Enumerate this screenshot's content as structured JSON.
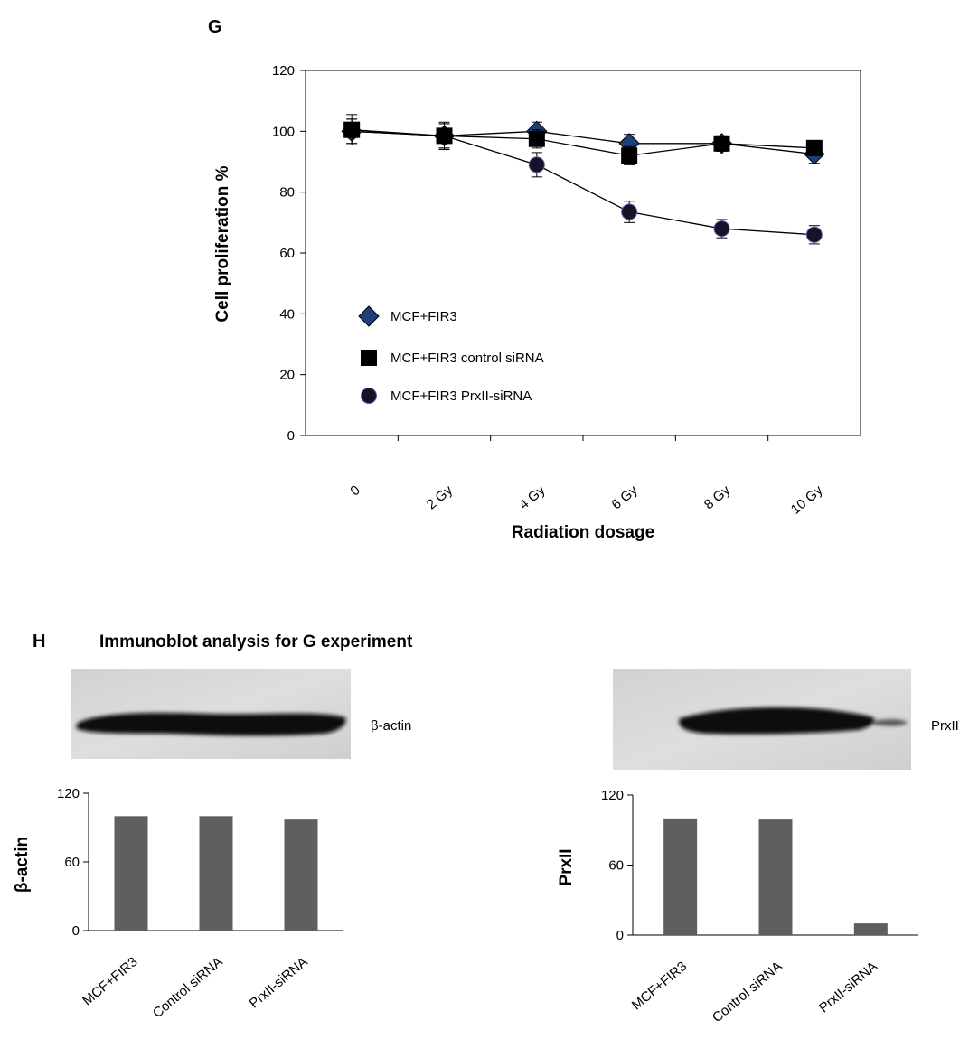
{
  "panel_g": {
    "letter": "G"
  },
  "panel_h": {
    "letter": "H",
    "subtitle": "Immunoblot analysis for G experiment",
    "blot_left_label": "β-actin",
    "blot_right_label": "PrxII"
  },
  "colors": {
    "bar_fill": "#5f5f5f",
    "line": "#000000",
    "diamond_fill": "#1f3f78",
    "circle_fill": "#15122a",
    "square_fill": "#000000"
  },
  "chart_data": [
    {
      "type": "line",
      "title": "",
      "xlabel": "Radiation dosage",
      "ylabel": "Cell proliferation %",
      "categories": [
        "0",
        "2 Gy",
        "4 Gy",
        "6 Gy",
        "8 Gy",
        "10 Gy"
      ],
      "ylim": [
        0,
        120
      ],
      "yticks": [
        0,
        20,
        40,
        60,
        80,
        100,
        120
      ],
      "legend_position": "lower-left",
      "series": [
        {
          "name": "MCF+FIR3",
          "marker": "diamond",
          "values": [
            100,
            98.5,
            100,
            96,
            96,
            92.5
          ],
          "errors": [
            4,
            4,
            3,
            3,
            2.5,
            3
          ]
        },
        {
          "name": "MCF+FIR3 control siRNA",
          "marker": "square",
          "values": [
            100.5,
            98.5,
            97.5,
            92,
            96,
            94.5
          ],
          "errors": [
            5,
            4.5,
            3,
            3,
            2.5,
            2.5
          ]
        },
        {
          "name": "MCF+FIR3 PrxII-siRNA",
          "marker": "circle",
          "values": [
            100,
            98.5,
            89,
            73.5,
            68,
            66
          ],
          "errors": [
            4,
            4,
            4,
            3.5,
            3,
            3
          ]
        }
      ]
    },
    {
      "type": "bar",
      "title": "",
      "xlabel": "",
      "ylabel": "β-actin",
      "categories": [
        "MCF+FIR3",
        "Control siRNA",
        "PrxII-siRNA"
      ],
      "values": [
        100,
        100,
        97
      ],
      "ylim": [
        0,
        120
      ],
      "yticks": [
        0,
        60,
        120
      ]
    },
    {
      "type": "bar",
      "title": "",
      "xlabel": "",
      "ylabel": "PrxII",
      "categories": [
        "MCF+FIR3",
        "Control siRNA",
        "PrxII-siRNA"
      ],
      "values": [
        100,
        99,
        10
      ],
      "ylim": [
        0,
        120
      ],
      "yticks": [
        0,
        60,
        120
      ]
    }
  ]
}
